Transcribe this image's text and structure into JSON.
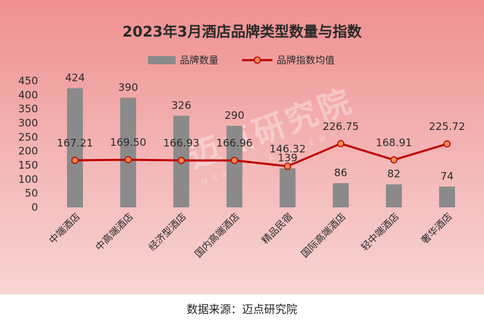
{
  "chart_data": {
    "type": "bar",
    "title": "2023年3月酒店品牌类型数量与指数",
    "categories": [
      "中端酒店",
      "中高端酒店",
      "经济型酒店",
      "国内高端酒店",
      "精品民宿",
      "国际高端酒店",
      "轻中端酒店",
      "奢华酒店"
    ],
    "series": [
      {
        "name": "品牌数量",
        "type": "bar",
        "color": "#8a8a8a",
        "values": [
          424,
          390,
          326,
          290,
          139,
          86,
          82,
          74
        ]
      },
      {
        "name": "品牌指数均值",
        "type": "line",
        "color": "#c00000",
        "marker_color": "#f08c50",
        "values": [
          167.21,
          169.5,
          166.93,
          166.96,
          146.32,
          226.75,
          168.91,
          225.72
        ]
      }
    ],
    "bar_labels": [
      "424",
      "390",
      "326",
      "290",
      "139",
      "86",
      "82",
      "74"
    ],
    "line_labels": [
      "167.21",
      "169.50",
      "166.93",
      "166.96",
      "146.32",
      "226.75",
      "168.91",
      "225.72"
    ],
    "ylim": [
      0,
      450
    ],
    "yticks": [
      0,
      50,
      100,
      150,
      200,
      250,
      300,
      350,
      400,
      450
    ],
    "legend_position": "top-center",
    "grid": false
  },
  "watermark": {
    "text": "迈点研究院",
    "subtext": "MEADIN ACADEMY"
  },
  "source_text": "数据来源：迈点研究院"
}
